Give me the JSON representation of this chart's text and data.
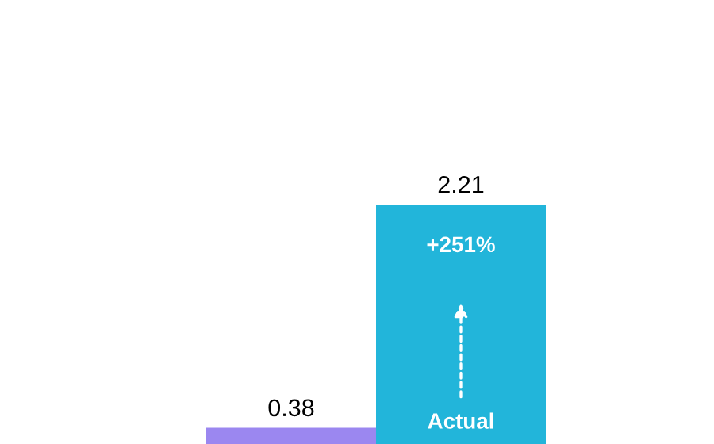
{
  "chart_data": {
    "type": "bar",
    "categories": [
      null,
      null
    ],
    "series": [
      {
        "values": [
          0.38,
          2.21
        ],
        "colors": [
          "#9b87f0",
          "#22b5da"
        ]
      }
    ],
    "data_labels": true,
    "annotations": [
      "+251%",
      "Actual"
    ]
  }
}
